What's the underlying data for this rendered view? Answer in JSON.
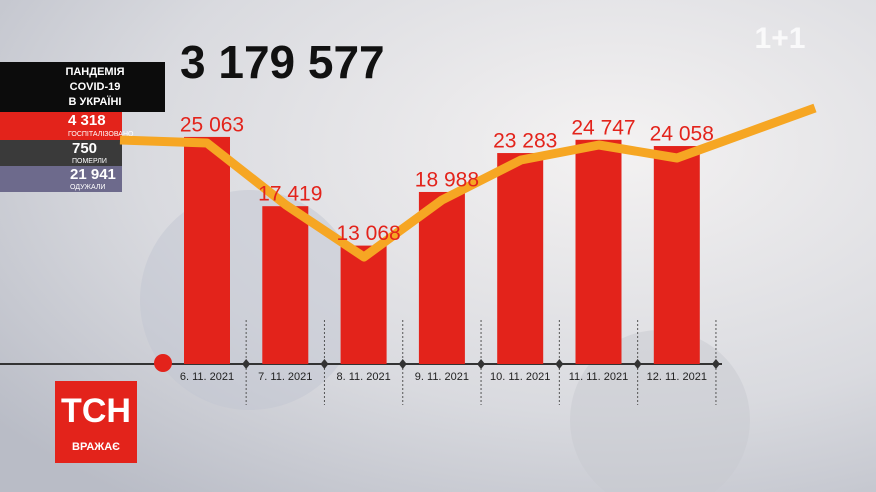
{
  "chart_data": {
    "type": "bar",
    "title": "3 179 577",
    "categories": [
      "6. 11. 2021",
      "7. 11. 2021",
      "8. 11. 2021",
      "9. 11. 2021",
      "10. 11. 2021",
      "11. 11. 2021",
      "12. 11. 2021"
    ],
    "values": [
      25063,
      17419,
      13068,
      18988,
      23283,
      24747,
      24058
    ],
    "value_labels": [
      "25 063",
      "17 419",
      "13 068",
      "18 988",
      "23 283",
      "24 747",
      "24 058"
    ],
    "color": "#e3231b"
  },
  "panel": {
    "heading": [
      "ПАНДЕМІЯ",
      "COVID-19",
      "В УКРАЇНІ"
    ],
    "stats": [
      {
        "value": "4 318",
        "label": "ГОСПІТАЛІЗОВАНО"
      },
      {
        "value": "750",
        "label": "ПОМЕРЛИ"
      },
      {
        "value": "21 941",
        "label": "ОДУЖАЛИ"
      }
    ]
  },
  "logo": {
    "name": "ТСН",
    "tagline": "ВРАЖАЄ"
  },
  "channel": "1+1"
}
